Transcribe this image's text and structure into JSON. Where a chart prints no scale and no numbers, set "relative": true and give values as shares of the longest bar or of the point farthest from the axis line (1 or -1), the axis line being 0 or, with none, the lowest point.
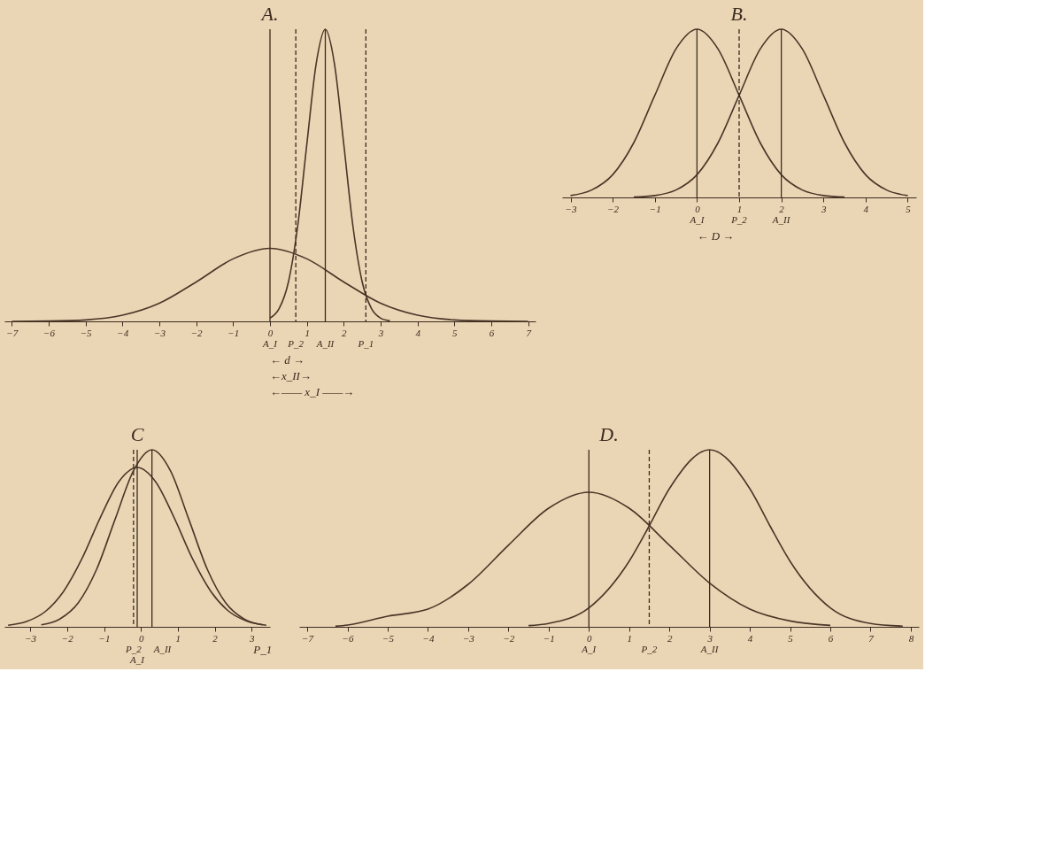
{
  "chart_data": [
    {
      "type": "line",
      "title": "A.",
      "relative": true,
      "xlim": [
        -7.2,
        7.2
      ],
      "xticks": [
        -7,
        -6,
        -5,
        -4,
        -3,
        -2,
        -1,
        0,
        1,
        2,
        3,
        4,
        5,
        6,
        7
      ],
      "line_style": "solid",
      "series": [
        {
          "color": "#4a3528",
          "x": [
            -7,
            -6,
            -5,
            -4,
            -3,
            -2,
            -1,
            0,
            1,
            2,
            3,
            4,
            5,
            6,
            7
          ],
          "values": [
            0,
            0.001,
            0.005,
            0.021,
            0.062,
            0.135,
            0.214,
            0.25,
            0.214,
            0.135,
            0.062,
            0.021,
            0.005,
            0.001,
            0
          ]
        },
        {
          "color": "#4a3528",
          "x": [
            0,
            0.25,
            0.5,
            0.75,
            1,
            1.25,
            1.5,
            1.75,
            2,
            2.25,
            2.5,
            2.75,
            3,
            3.25
          ],
          "values": [
            0.011,
            0.044,
            0.135,
            0.325,
            0.607,
            0.88,
            1,
            0.88,
            0.607,
            0.325,
            0.135,
            0.044,
            0.011,
            0.002
          ]
        }
      ],
      "ref_lines": [
        {
          "axis": "x",
          "value": 0,
          "label": "A_I",
          "line_style": "solid"
        },
        {
          "axis": "x",
          "value": 0.7,
          "label": "P_2",
          "line_style": "dashed"
        },
        {
          "axis": "x",
          "value": 1.5,
          "label": "A_II",
          "line_style": "solid"
        },
        {
          "axis": "x",
          "value": 2.6,
          "label": "P_1",
          "line_style": "dashed"
        }
      ],
      "annotations": [
        "← d →",
        "←x_II→",
        "←—— x_I ——→"
      ]
    },
    {
      "type": "line",
      "title": "B.",
      "relative": true,
      "xlim": [
        -3.2,
        5.2
      ],
      "xticks": [
        -3,
        -2,
        -1,
        0,
        1,
        2,
        3,
        4,
        5
      ],
      "line_style": "solid",
      "series": [
        {
          "color": "#4a3528",
          "x": [
            -3,
            -2.5,
            -2,
            -1.5,
            -1,
            -0.5,
            0,
            0.5,
            1,
            1.5,
            2,
            2.5,
            3,
            3.5
          ],
          "values": [
            0.011,
            0.044,
            0.135,
            0.325,
            0.607,
            0.882,
            1,
            0.882,
            0.607,
            0.325,
            0.135,
            0.044,
            0.011,
            0.002
          ]
        },
        {
          "color": "#4a3528",
          "x": [
            -1.5,
            -1,
            -0.5,
            0,
            0.5,
            1,
            1.5,
            2,
            2.5,
            3,
            3.5,
            4,
            4.5,
            5
          ],
          "values": [
            0.002,
            0.011,
            0.044,
            0.135,
            0.325,
            0.607,
            0.882,
            1,
            0.882,
            0.607,
            0.325,
            0.135,
            0.044,
            0.011
          ]
        }
      ],
      "ref_lines": [
        {
          "axis": "x",
          "value": 0,
          "label": "A_I",
          "line_style": "solid"
        },
        {
          "axis": "x",
          "value": 1,
          "label": "P_2",
          "line_style": "dashed"
        },
        {
          "axis": "x",
          "value": 2,
          "label": "A_II",
          "line_style": "solid"
        }
      ],
      "annotations": [
        "← D →"
      ]
    },
    {
      "type": "line",
      "title": "C",
      "relative": true,
      "xlim": [
        -3.7,
        3.5
      ],
      "xticks": [
        -3,
        -2,
        -1,
        0,
        1,
        2,
        3
      ],
      "line_style": "solid",
      "series": [
        {
          "color": "#4a3528",
          "x": [
            -3.6,
            -3.1,
            -2.6,
            -2.1,
            -1.6,
            -1.1,
            -0.6,
            -0.1,
            0.4,
            0.9,
            1.4,
            1.9,
            2.4,
            2.9,
            3.4
          ],
          "values": [
            0.009,
            0.03,
            0.085,
            0.199,
            0.384,
            0.617,
            0.819,
            0.9,
            0.819,
            0.617,
            0.384,
            0.199,
            0.085,
            0.03,
            0.009
          ]
        },
        {
          "color": "#4a3528",
          "x": [
            -2.7,
            -2.2,
            -1.7,
            -1.2,
            -0.7,
            -0.2,
            0.3,
            0.8,
            1.3,
            1.8,
            2.3,
            2.8,
            3.3
          ],
          "values": [
            0.011,
            0.044,
            0.135,
            0.325,
            0.607,
            0.882,
            1,
            0.882,
            0.607,
            0.325,
            0.135,
            0.044,
            0.011
          ]
        }
      ],
      "ref_lines": [
        {
          "axis": "x",
          "value": -0.2,
          "label": "P_2",
          "line_style": "dashed"
        },
        {
          "axis": "x",
          "value": -0.1,
          "label": "A_I",
          "line_style": "solid"
        },
        {
          "axis": "x",
          "value": 0.3,
          "label": "A_II",
          "line_style": "solid"
        }
      ],
      "annotations": [
        {
          "text": "P_1",
          "x": 3.3,
          "y": 0
        }
      ]
    },
    {
      "type": "line",
      "title": "D.",
      "relative": true,
      "xlim": [
        -7.2,
        8.2
      ],
      "xticks": [
        -7,
        -6,
        -5,
        -4,
        -3,
        -2,
        -1,
        0,
        1,
        2,
        3,
        4,
        5,
        6,
        7,
        8
      ],
      "line_style": "solid",
      "series": [
        {
          "color": "#4a3528",
          "x": [
            -6.3,
            -6,
            -5,
            -4,
            -3,
            -2,
            -1,
            0,
            1,
            2,
            3,
            4,
            5,
            6
          ],
          "values": [
            0.003,
            0.01,
            0.06,
            0.1,
            0.24,
            0.461,
            0.67,
            0.76,
            0.67,
            0.461,
            0.247,
            0.1,
            0.033,
            0.008
          ]
        },
        {
          "color": "#4a3528",
          "x": [
            -1.5,
            -1,
            0,
            1,
            1.5,
            2,
            3,
            4,
            4.5,
            5,
            6,
            7,
            7.8
          ],
          "values": [
            0.007,
            0.019,
            0.107,
            0.37,
            0.57,
            0.78,
            1,
            0.78,
            0.57,
            0.37,
            0.107,
            0.019,
            0.004
          ]
        }
      ],
      "ref_lines": [
        {
          "axis": "x",
          "value": 0,
          "label": "A_I",
          "line_style": "solid"
        },
        {
          "axis": "x",
          "value": 1.5,
          "label": "P_2",
          "line_style": "dashed"
        },
        {
          "axis": "x",
          "value": 3,
          "label": "A_II",
          "line_style": "solid"
        }
      ]
    }
  ]
}
